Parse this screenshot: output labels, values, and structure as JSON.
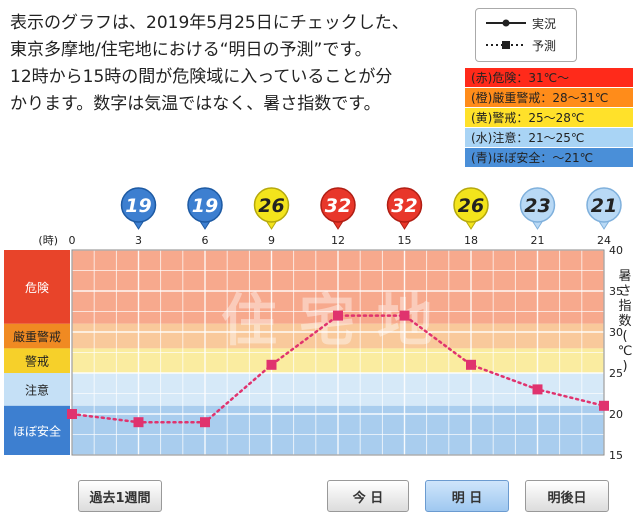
{
  "description": [
    "表示のグラフは、2019年5月25日にチェックした、",
    "東京多摩地/住宅地における“明日の予測”です。",
    "12時から15時の間が危険域に入っていることが分",
    "かります。数字は気温ではなく、暑さ指数です。"
  ],
  "legend": {
    "actual": "実況",
    "forecast": "予測"
  },
  "danger_levels": [
    {
      "label": "(赤)危険",
      "range": "：31℃～",
      "color": "#ff2a1a"
    },
    {
      "label": "(橙)厳重警戒",
      "range": "：28～31℃",
      "color": "#ff8c1a"
    },
    {
      "label": "(黄)警戒",
      "range": "：25～28℃",
      "color": "#ffe12a"
    },
    {
      "label": "(水)注意",
      "range": "：21～25℃",
      "color": "#a9d4f5"
    },
    {
      "label": "(青)ほぼ安全",
      "range": "：～21℃",
      "color": "#4a8fd8"
    }
  ],
  "watermark": "住宅地",
  "colors": {
    "danger_bg": "#f7a98d",
    "severe_bg": "#f9c99b",
    "warning_bg": "#faeca0",
    "caution_bg": "#d6e9f8",
    "safe_bg": "#a9cdee",
    "band_danger": "#e8442a",
    "band_severe": "#f08a22",
    "band_warning": "#f6d02a",
    "band_caution": "#c5e0f6",
    "band_safe": "#3d7fd0",
    "marker": "#e0336e"
  },
  "chart_data": {
    "type": "line",
    "x_unit_label": "(時)",
    "x": [
      0,
      3,
      6,
      9,
      12,
      15,
      18,
      21,
      24
    ],
    "x_ticks": [
      "0",
      "3",
      "6",
      "9",
      "12",
      "15",
      "18",
      "21",
      "24"
    ],
    "series": [
      {
        "name": "予測",
        "values": [
          20,
          19,
          19,
          26,
          32,
          32,
          26,
          23,
          21
        ]
      }
    ],
    "bubble_values": [
      "19",
      "19",
      "26",
      "32",
      "32",
      "26",
      "23",
      "21"
    ],
    "bubble_x": [
      3,
      6,
      9,
      12,
      15,
      18,
      21,
      24
    ],
    "ylabel": "暑さ指数(℃)",
    "ylim": [
      15,
      40
    ],
    "y_ticks": [
      "15",
      "20",
      "25",
      "30",
      "35",
      "40"
    ],
    "zones": [
      {
        "label": "危険",
        "from": 31,
        "to": 40
      },
      {
        "label": "厳重警戒",
        "from": 28,
        "to": 31
      },
      {
        "label": "警戒",
        "from": 25,
        "to": 28
      },
      {
        "label": "注意",
        "from": 21,
        "to": 25
      },
      {
        "label": "ほぼ安全",
        "from": 15,
        "to": 21
      }
    ]
  },
  "buttons": {
    "past_week": "過去1週間",
    "today": "今 日",
    "tomorrow": "明 日",
    "day_after": "明後日"
  }
}
